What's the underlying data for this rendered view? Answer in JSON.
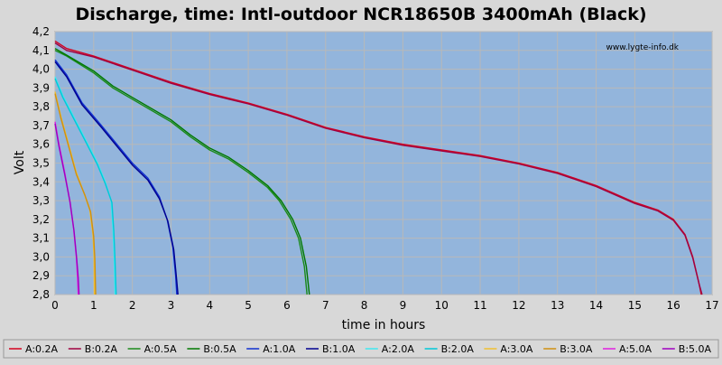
{
  "chart_data": {
    "type": "line",
    "title": "Discharge, time: Intl-outdoor NCR18650B 3400mAh (Black)",
    "xlabel": "time in hours",
    "ylabel": "Volt",
    "watermark": "www.lygte-info.dk",
    "xlim": [
      0,
      17
    ],
    "ylim": [
      2.8,
      4.2
    ],
    "xticks": [
      "0",
      "1",
      "2",
      "3",
      "4",
      "5",
      "6",
      "7",
      "8",
      "9",
      "10",
      "11",
      "12",
      "13",
      "14",
      "15",
      "16",
      "17"
    ],
    "yticks": [
      "2,8",
      "2,9",
      "3,0",
      "3,1",
      "3,2",
      "3,3",
      "3,4",
      "3,5",
      "3,6",
      "3,7",
      "3,8",
      "3,9",
      "4,0",
      "4,1",
      "4,2"
    ],
    "grid": true,
    "legend_position": "bottom",
    "plot_background": "#93b5dc",
    "series": [
      {
        "name": "A:0.2A",
        "color": "#d4001e",
        "points": [
          [
            0,
            4.15
          ],
          [
            0.3,
            4.11
          ],
          [
            1,
            4.07
          ],
          [
            2,
            4.0
          ],
          [
            3,
            3.93
          ],
          [
            4,
            3.87
          ],
          [
            5,
            3.82
          ],
          [
            6,
            3.76
          ],
          [
            7,
            3.69
          ],
          [
            8,
            3.64
          ],
          [
            9,
            3.6
          ],
          [
            10,
            3.57
          ],
          [
            11,
            3.54
          ],
          [
            12,
            3.5
          ],
          [
            13,
            3.45
          ],
          [
            14,
            3.38
          ],
          [
            15,
            3.29
          ],
          [
            15.6,
            3.25
          ],
          [
            16,
            3.2
          ],
          [
            16.3,
            3.12
          ],
          [
            16.5,
            3.0
          ],
          [
            16.65,
            2.87
          ],
          [
            16.72,
            2.8
          ]
        ]
      },
      {
        "name": "B:0.2A",
        "color": "#a00040",
        "points": [
          [
            0,
            4.14
          ],
          [
            0.3,
            4.1
          ],
          [
            1,
            4.065
          ],
          [
            2,
            3.995
          ],
          [
            3,
            3.925
          ],
          [
            4,
            3.865
          ],
          [
            5,
            3.815
          ],
          [
            6,
            3.755
          ],
          [
            7,
            3.685
          ],
          [
            8,
            3.635
          ],
          [
            9,
            3.595
          ],
          [
            10,
            3.565
          ],
          [
            11,
            3.535
          ],
          [
            12,
            3.495
          ],
          [
            13,
            3.445
          ],
          [
            14,
            3.375
          ],
          [
            15,
            3.285
          ],
          [
            15.6,
            3.245
          ],
          [
            16,
            3.195
          ],
          [
            16.3,
            3.115
          ],
          [
            16.5,
            2.995
          ],
          [
            16.66,
            2.86
          ],
          [
            16.74,
            2.8
          ]
        ]
      },
      {
        "name": "A:0.5A",
        "color": "#1a8a1a",
        "points": [
          [
            0,
            4.1
          ],
          [
            0.3,
            4.07
          ],
          [
            1,
            3.98
          ],
          [
            1.5,
            3.9
          ],
          [
            2,
            3.84
          ],
          [
            3,
            3.72
          ],
          [
            3.5,
            3.64
          ],
          [
            4,
            3.57
          ],
          [
            4.5,
            3.52
          ],
          [
            5,
            3.45
          ],
          [
            5.5,
            3.37
          ],
          [
            5.8,
            3.3
          ],
          [
            6.1,
            3.2
          ],
          [
            6.3,
            3.1
          ],
          [
            6.45,
            2.95
          ],
          [
            6.52,
            2.8
          ]
        ]
      },
      {
        "name": "B:0.5A",
        "color": "#007800",
        "points": [
          [
            0,
            4.11
          ],
          [
            0.3,
            4.075
          ],
          [
            1,
            3.99
          ],
          [
            1.5,
            3.91
          ],
          [
            2,
            3.85
          ],
          [
            3,
            3.73
          ],
          [
            3.5,
            3.65
          ],
          [
            4,
            3.58
          ],
          [
            4.5,
            3.53
          ],
          [
            5,
            3.46
          ],
          [
            5.5,
            3.38
          ],
          [
            5.85,
            3.3
          ],
          [
            6.15,
            3.2
          ],
          [
            6.35,
            3.1
          ],
          [
            6.5,
            2.95
          ],
          [
            6.58,
            2.8
          ]
        ]
      },
      {
        "name": "A:1.0A",
        "color": "#1030d0",
        "points": [
          [
            0,
            4.05
          ],
          [
            0.3,
            3.97
          ],
          [
            0.7,
            3.82
          ],
          [
            1.2,
            3.7
          ],
          [
            1.6,
            3.6
          ],
          [
            2,
            3.5
          ],
          [
            2.4,
            3.42
          ],
          [
            2.7,
            3.32
          ],
          [
            2.9,
            3.2
          ],
          [
            3.05,
            3.05
          ],
          [
            3.12,
            2.9
          ],
          [
            3.15,
            2.8
          ]
        ]
      },
      {
        "name": "B:1.0A",
        "color": "#000090",
        "points": [
          [
            0,
            4.04
          ],
          [
            0.3,
            3.96
          ],
          [
            0.7,
            3.81
          ],
          [
            1.2,
            3.69
          ],
          [
            1.6,
            3.59
          ],
          [
            2,
            3.49
          ],
          [
            2.4,
            3.41
          ],
          [
            2.7,
            3.31
          ],
          [
            2.92,
            3.19
          ],
          [
            3.07,
            3.04
          ],
          [
            3.14,
            2.89
          ],
          [
            3.18,
            2.8
          ]
        ]
      },
      {
        "name": "A:2.0A",
        "color": "#40e8f0",
        "points": [
          [
            0,
            3.96
          ],
          [
            0.2,
            3.86
          ],
          [
            0.5,
            3.74
          ],
          [
            0.8,
            3.62
          ],
          [
            1.1,
            3.5
          ],
          [
            1.3,
            3.4
          ],
          [
            1.45,
            3.3
          ],
          [
            1.5,
            3.15
          ],
          [
            1.53,
            3.0
          ],
          [
            1.55,
            2.8
          ]
        ]
      },
      {
        "name": "B:2.0A",
        "color": "#00c8d8",
        "points": [
          [
            0,
            3.95
          ],
          [
            0.2,
            3.85
          ],
          [
            0.5,
            3.73
          ],
          [
            0.8,
            3.61
          ],
          [
            1.1,
            3.49
          ],
          [
            1.3,
            3.39
          ],
          [
            1.47,
            3.29
          ],
          [
            1.52,
            3.14
          ],
          [
            1.55,
            2.99
          ],
          [
            1.58,
            2.8
          ]
        ]
      },
      {
        "name": "A:3.0A",
        "color": "#f0c030",
        "points": [
          [
            0,
            3.88
          ],
          [
            0.15,
            3.75
          ],
          [
            0.35,
            3.6
          ],
          [
            0.55,
            3.45
          ],
          [
            0.75,
            3.34
          ],
          [
            0.9,
            3.25
          ],
          [
            0.98,
            3.12
          ],
          [
            1.01,
            3.0
          ],
          [
            1.02,
            2.8
          ]
        ]
      },
      {
        "name": "B:3.0A",
        "color": "#d09010",
        "points": [
          [
            0,
            3.87
          ],
          [
            0.15,
            3.74
          ],
          [
            0.35,
            3.59
          ],
          [
            0.55,
            3.44
          ],
          [
            0.77,
            3.33
          ],
          [
            0.92,
            3.24
          ],
          [
            1.0,
            3.11
          ],
          [
            1.03,
            2.99
          ],
          [
            1.05,
            2.8
          ]
        ]
      },
      {
        "name": "A:5.0A",
        "color": "#e020e0",
        "points": [
          [
            0,
            3.72
          ],
          [
            0.1,
            3.6
          ],
          [
            0.25,
            3.45
          ],
          [
            0.38,
            3.3
          ],
          [
            0.48,
            3.15
          ],
          [
            0.55,
            3.0
          ],
          [
            0.58,
            2.9
          ],
          [
            0.6,
            2.8
          ]
        ]
      },
      {
        "name": "B:5.0A",
        "color": "#a000c0",
        "points": [
          [
            0,
            3.71
          ],
          [
            0.1,
            3.59
          ],
          [
            0.25,
            3.44
          ],
          [
            0.39,
            3.29
          ],
          [
            0.49,
            3.14
          ],
          [
            0.56,
            2.99
          ],
          [
            0.6,
            2.89
          ],
          [
            0.62,
            2.8
          ]
        ]
      }
    ]
  }
}
